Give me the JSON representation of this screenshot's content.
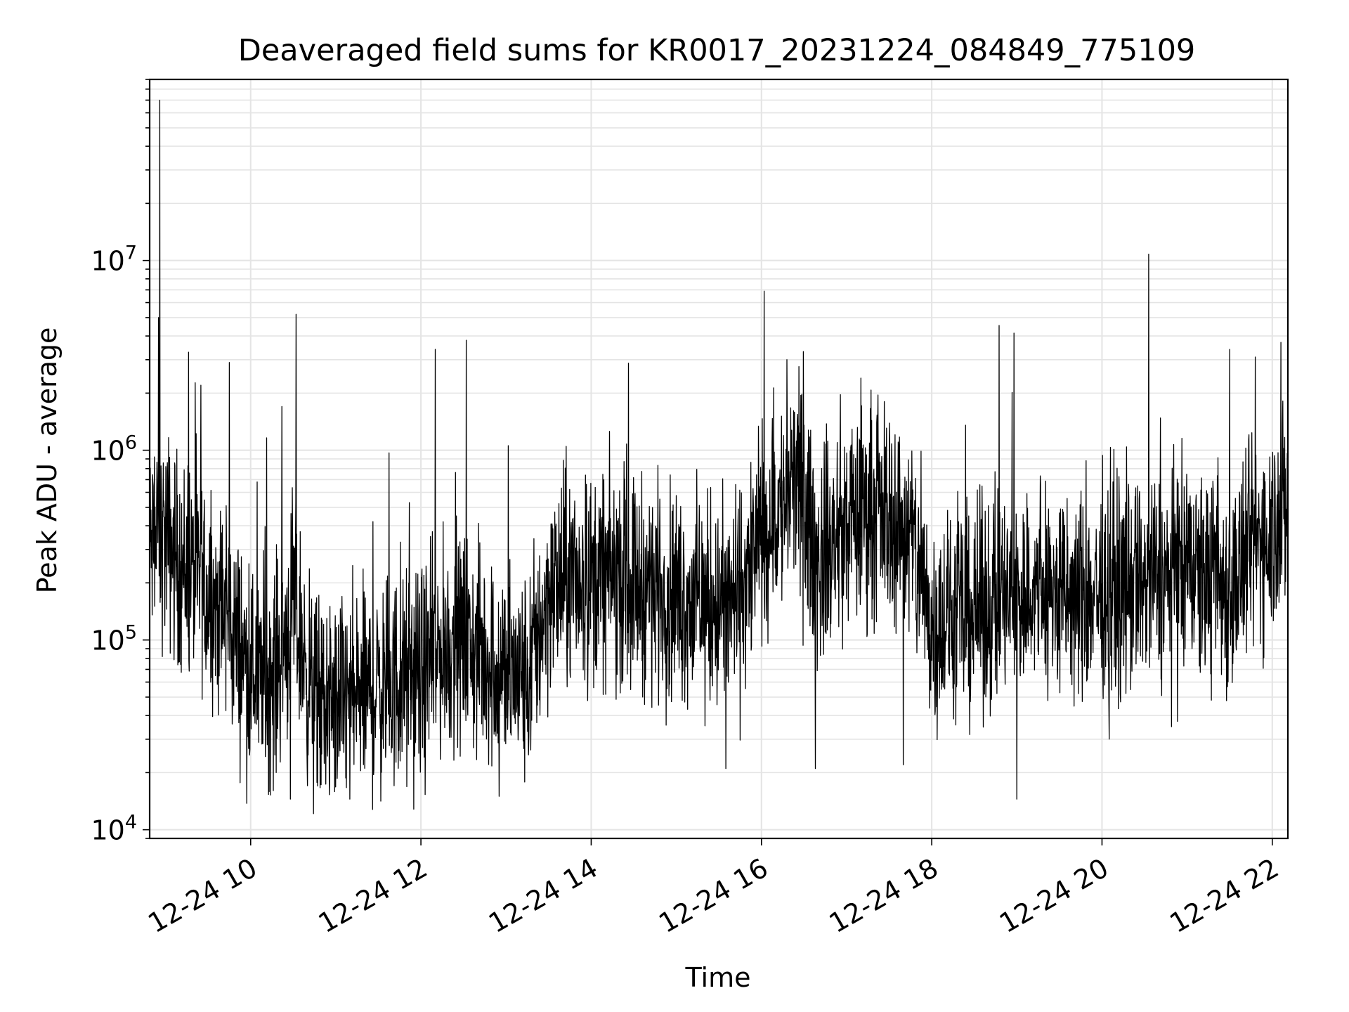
{
  "chart_data": {
    "type": "line",
    "title": "Deaveraged field sums for KR0017_20231224_084849_775109",
    "xlabel": "Time",
    "ylabel": "Peak ADU - average",
    "yscale": "log",
    "ylim": [
      9000,
      90000000
    ],
    "xlim": [
      "2023-12-24 08:48:49",
      "2023-12-24 22:11:00"
    ],
    "xticks": [
      "12-24 10",
      "12-24 12",
      "12-24 14",
      "12-24 16",
      "12-24 18",
      "12-24 20",
      "12-24 22"
    ],
    "yticks": [
      {
        "base": "10",
        "exp": "4",
        "value": 10000
      },
      {
        "base": "10",
        "exp": "5",
        "value": 100000
      },
      {
        "base": "10",
        "exp": "6",
        "value": 1000000
      },
      {
        "base": "10",
        "exp": "7",
        "value": 10000000
      }
    ],
    "grid": true,
    "line_color": "#000000",
    "series": [
      {
        "x": [
          "2023-12-24 08:48:49",
          "2023-12-24 09:00",
          "2023-12-24 09:05",
          "2023-12-24 09:10",
          "2023-12-24 09:20",
          "2023-12-24 09:30",
          "2023-12-24 09:45",
          "2023-12-24 10:00",
          "2023-12-24 10:15",
          "2023-12-24 10:30",
          "2023-12-24 10:45",
          "2023-12-24 11:00",
          "2023-12-24 11:15",
          "2023-12-24 11:30",
          "2023-12-24 11:45",
          "2023-12-24 12:00",
          "2023-12-24 12:15",
          "2023-12-24 12:30",
          "2023-12-24 12:45",
          "2023-12-24 13:00",
          "2023-12-24 13:15",
          "2023-12-24 13:30",
          "2023-12-24 13:45",
          "2023-12-24 14:00",
          "2023-12-24 14:15",
          "2023-12-24 14:30",
          "2023-12-24 14:45",
          "2023-12-24 15:00",
          "2023-12-24 15:15",
          "2023-12-24 15:30",
          "2023-12-24 15:45",
          "2023-12-24 16:00",
          "2023-12-24 16:15",
          "2023-12-24 16:25",
          "2023-12-24 16:40",
          "2023-12-24 17:00",
          "2023-12-24 17:15",
          "2023-12-24 17:30",
          "2023-12-24 17:45",
          "2023-12-24 18:00",
          "2023-12-24 18:15",
          "2023-12-24 18:30",
          "2023-12-24 18:45",
          "2023-12-24 19:00",
          "2023-12-24 19:15",
          "2023-12-24 19:30",
          "2023-12-24 19:45",
          "2023-12-24 20:00",
          "2023-12-24 20:15",
          "2023-12-24 20:30",
          "2023-12-24 20:45",
          "2023-12-24 21:00",
          "2023-12-24 21:15",
          "2023-12-24 21:30",
          "2023-12-24 21:45",
          "2023-12-24 22:00",
          "2023-12-24 22:11"
        ],
        "y": [
          300000,
          350000,
          300000,
          250000,
          220000,
          180000,
          120000,
          70000,
          60000,
          150000,
          45000,
          45000,
          50000,
          55000,
          60000,
          65000,
          90000,
          100000,
          80000,
          70000,
          60000,
          180000,
          200000,
          210000,
          220000,
          200000,
          190000,
          170000,
          160000,
          150000,
          170000,
          350000,
          500000,
          700000,
          250000,
          400000,
          500000,
          450000,
          350000,
          120000,
          130000,
          140000,
          160000,
          170000,
          180000,
          170000,
          160000,
          180000,
          190000,
          200000,
          210000,
          220000,
          220000,
          180000,
          300000,
          400000,
          500000
        ],
        "spikes": [
          {
            "x": "2023-12-24 08:55",
            "y": 5000000
          },
          {
            "x": "2023-12-24 08:56",
            "y": 70000000
          },
          {
            "x": "2023-12-24 09:25",
            "y": 2200000
          },
          {
            "x": "2023-12-24 09:45",
            "y": 2900000
          },
          {
            "x": "2023-12-24 10:22",
            "y": 1700000
          },
          {
            "x": "2023-12-24 10:32",
            "y": 5200000
          },
          {
            "x": "2023-12-24 12:10",
            "y": 3400000
          },
          {
            "x": "2023-12-24 12:32",
            "y": 3800000
          },
          {
            "x": "2023-12-24 16:18",
            "y": 3000000
          },
          {
            "x": "2023-12-24 17:10",
            "y": 2400000
          },
          {
            "x": "2023-12-24 20:33",
            "y": 10800000
          },
          {
            "x": "2023-12-24 21:30",
            "y": 3400000
          },
          {
            "x": "2023-12-24 21:48",
            "y": 3100000
          },
          {
            "x": "2023-12-24 22:06",
            "y": 3700000
          }
        ],
        "dips": [
          {
            "x": "2023-12-24 10:28",
            "y": 14500
          },
          {
            "x": "2023-12-24 11:10",
            "y": 14500
          },
          {
            "x": "2023-12-24 12:55",
            "y": 15000
          },
          {
            "x": "2023-12-24 15:35",
            "y": 21000
          },
          {
            "x": "2023-12-24 16:38",
            "y": 21000
          },
          {
            "x": "2023-12-24 17:40",
            "y": 22000
          },
          {
            "x": "2023-12-24 19:00",
            "y": 14500
          },
          {
            "x": "2023-12-24 20:05",
            "y": 30000
          }
        ]
      }
    ]
  }
}
